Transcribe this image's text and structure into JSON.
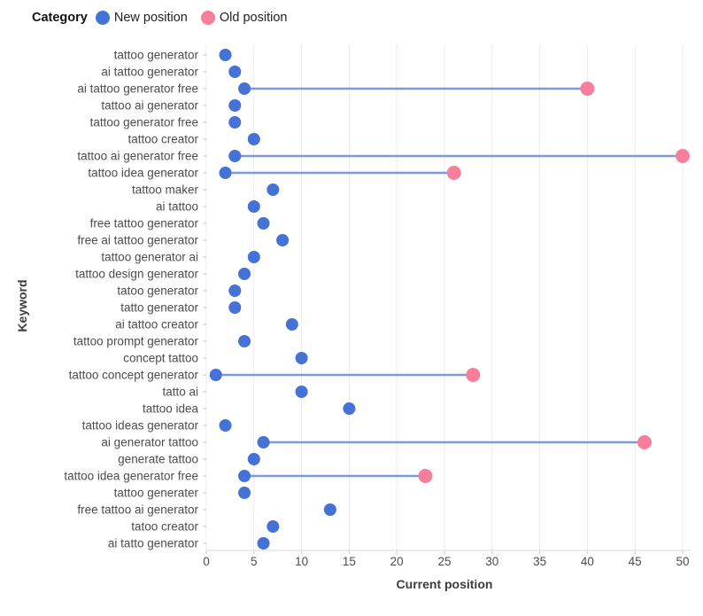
{
  "legend": {
    "title": "Category",
    "position": "top-left"
  },
  "chart_data": {
    "type": "scatter",
    "variant": "dumbbell",
    "title": "",
    "xlabel": "Current position",
    "ylabel": "Keyword",
    "xlim": [
      0,
      50
    ],
    "xticks": [
      0,
      5,
      10,
      15,
      20,
      25,
      30,
      35,
      40,
      45,
      50
    ],
    "grid": "vertical",
    "legend_position": "top-left",
    "categories": [
      "tattoo generator",
      "ai tattoo generator",
      "ai tattoo generator free",
      "tattoo ai generator",
      "tattoo generator free",
      "tattoo creator",
      "tattoo ai generator free",
      "tattoo idea generator",
      "tattoo maker",
      "ai tattoo",
      "free tattoo generator",
      "free ai tattoo generator",
      "tattoo generator ai",
      "tattoo design generator",
      "tatoo generator",
      "tatto generator",
      "ai tattoo creator",
      "tattoo prompt generator",
      "concept tattoo",
      "tattoo concept generator",
      "tatto ai",
      "tattoo idea",
      "tattoo ideas generator",
      "ai generator tattoo",
      "generate tattoo",
      "tattoo idea generator free",
      "tattoo generater",
      "free tattoo ai generator",
      "tatoo creator",
      "ai tatto generator"
    ],
    "series": [
      {
        "name": "New position",
        "color": "#4472d6",
        "values": [
          2,
          3,
          4,
          3,
          3,
          5,
          3,
          2,
          7,
          5,
          6,
          8,
          5,
          4,
          3,
          3,
          9,
          4,
          10,
          1,
          10,
          15,
          2,
          6,
          5,
          4,
          4,
          13,
          7,
          6
        ]
      },
      {
        "name": "Old position",
        "color": "#f87e9b",
        "values": [
          null,
          null,
          40,
          null,
          null,
          null,
          50,
          26,
          null,
          null,
          null,
          null,
          null,
          null,
          null,
          null,
          null,
          null,
          null,
          28,
          null,
          null,
          null,
          46,
          null,
          23,
          null,
          null,
          null,
          null
        ]
      }
    ],
    "connector_color": "#7e99de"
  }
}
